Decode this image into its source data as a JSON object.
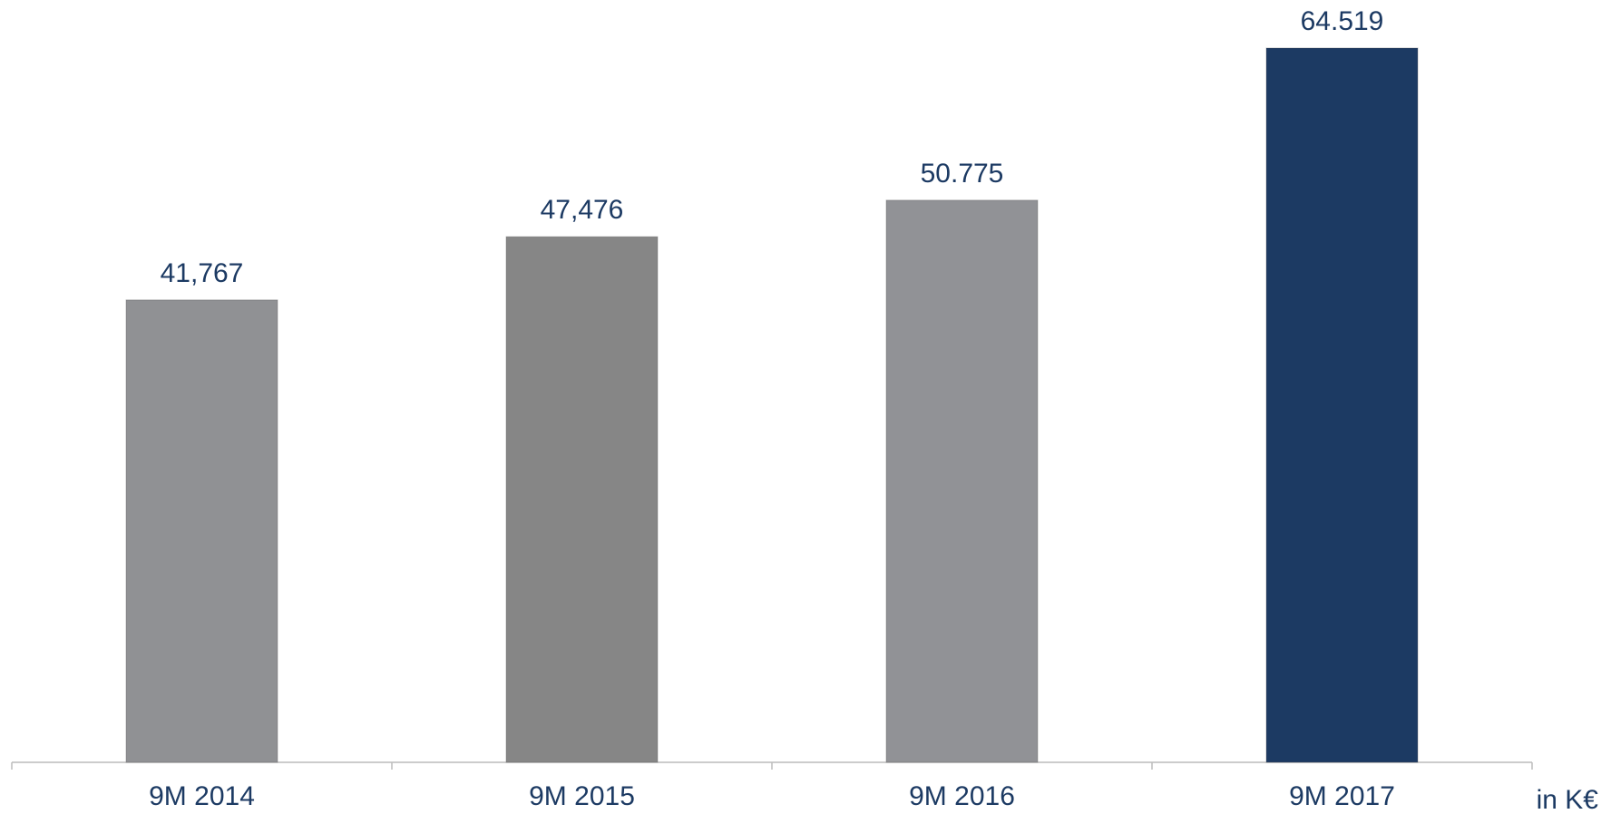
{
  "chart_data": {
    "type": "bar",
    "categories": [
      "9M 2014",
      "9M 2015",
      "9M 2016",
      "9M 2017"
    ],
    "values": [
      41767,
      47476,
      50775,
      64519
    ],
    "value_labels": [
      "41,767",
      "47,476",
      "50.775",
      "64.519"
    ],
    "colors": [
      "#909194",
      "#868686",
      "#919296",
      "#1c3a63"
    ],
    "unit_label": "in K€",
    "grid": false
  }
}
